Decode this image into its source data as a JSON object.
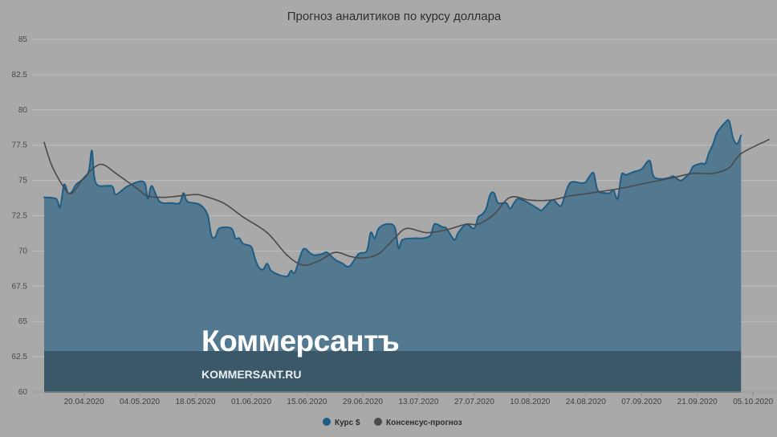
{
  "chart_data": {
    "type": "area",
    "title": "Прогноз аналитиков по курсу доллара",
    "xlabel": "",
    "ylabel": "",
    "ylim": [
      60,
      85
    ],
    "yticks": [
      "60",
      "62.5",
      "65",
      "67.5",
      "70",
      "72.5",
      "75",
      "77.5",
      "80",
      "82.5",
      "85"
    ],
    "xticks": [
      "20.04.2020",
      "04.05.2020",
      "18.05.2020",
      "01.06.2020",
      "15.06.2020",
      "29.06.2020",
      "13.07.2020",
      "27.07.2020",
      "10.08.2020",
      "24.08.2020",
      "07.09.2020",
      "21.09.2020",
      "05.10.2020"
    ],
    "x_start": "2020-04-10",
    "x_end": "2020-10-09",
    "grid": true,
    "legend_position": "bottom-center",
    "series": [
      {
        "name": "Курс $",
        "kind": "area",
        "color": "#1f5d86",
        "points": [
          [
            "2020-04-10",
            73.8
          ],
          [
            "2020-04-13",
            73.7
          ],
          [
            "2020-04-14",
            73.1
          ],
          [
            "2020-04-15",
            74.7
          ],
          [
            "2020-04-16",
            74.1
          ],
          [
            "2020-04-17",
            74.2
          ],
          [
            "2020-04-18",
            74.7
          ],
          [
            "2020-04-21",
            75.5
          ],
          [
            "2020-04-22",
            77.1
          ],
          [
            "2020-04-23",
            74.8
          ],
          [
            "2020-04-27",
            74.6
          ],
          [
            "2020-04-28",
            74.0
          ],
          [
            "2020-05-01",
            74.6
          ],
          [
            "2020-05-05",
            74.9
          ],
          [
            "2020-05-06",
            73.7
          ],
          [
            "2020-05-07",
            74.6
          ],
          [
            "2020-05-09",
            73.5
          ],
          [
            "2020-05-12",
            73.4
          ],
          [
            "2020-05-14",
            73.4
          ],
          [
            "2020-05-15",
            74.1
          ],
          [
            "2020-05-16",
            73.5
          ],
          [
            "2020-05-19",
            73.3
          ],
          [
            "2020-05-21",
            72.6
          ],
          [
            "2020-05-22",
            71.1
          ],
          [
            "2020-05-23",
            71.0
          ],
          [
            "2020-05-24",
            71.6
          ],
          [
            "2020-05-27",
            71.6
          ],
          [
            "2020-05-28",
            70.9
          ],
          [
            "2020-05-29",
            70.9
          ],
          [
            "2020-05-30",
            70.5
          ],
          [
            "2020-06-01",
            70.3
          ],
          [
            "2020-06-02",
            69.4
          ],
          [
            "2020-06-03",
            68.8
          ],
          [
            "2020-06-04",
            68.7
          ],
          [
            "2020-06-05",
            69.1
          ],
          [
            "2020-06-06",
            68.6
          ],
          [
            "2020-06-08",
            68.3
          ],
          [
            "2020-06-10",
            68.2
          ],
          [
            "2020-06-11",
            68.6
          ],
          [
            "2020-06-12",
            68.5
          ],
          [
            "2020-06-14",
            70.1
          ],
          [
            "2020-06-16",
            69.8
          ],
          [
            "2020-06-17",
            69.7
          ],
          [
            "2020-06-19",
            69.8
          ],
          [
            "2020-06-20",
            69.9
          ],
          [
            "2020-06-22",
            69.4
          ],
          [
            "2020-06-24",
            69.1
          ],
          [
            "2020-06-25",
            68.9
          ],
          [
            "2020-06-26",
            69.0
          ],
          [
            "2020-06-28",
            69.8
          ],
          [
            "2020-06-30",
            70.0
          ],
          [
            "2020-07-01",
            71.3
          ],
          [
            "2020-07-02",
            70.9
          ],
          [
            "2020-07-03",
            71.6
          ],
          [
            "2020-07-05",
            71.9
          ],
          [
            "2020-07-07",
            71.7
          ],
          [
            "2020-07-08",
            70.2
          ],
          [
            "2020-07-09",
            70.8
          ],
          [
            "2020-07-12",
            70.9
          ],
          [
            "2020-07-14",
            70.9
          ],
          [
            "2020-07-16",
            71.1
          ],
          [
            "2020-07-17",
            71.9
          ],
          [
            "2020-07-19",
            71.7
          ],
          [
            "2020-07-20",
            71.6
          ],
          [
            "2020-07-22",
            70.8
          ],
          [
            "2020-07-23",
            71.3
          ],
          [
            "2020-07-25",
            71.9
          ],
          [
            "2020-07-27",
            71.6
          ],
          [
            "2020-07-28",
            72.4
          ],
          [
            "2020-07-29",
            72.6
          ],
          [
            "2020-07-30",
            73.0
          ],
          [
            "2020-07-31",
            74.0
          ],
          [
            "2020-08-01",
            74.1
          ],
          [
            "2020-08-02",
            73.4
          ],
          [
            "2020-08-04",
            73.4
          ],
          [
            "2020-08-05",
            73.0
          ],
          [
            "2020-08-06",
            73.4
          ],
          [
            "2020-08-07",
            73.7
          ],
          [
            "2020-08-09",
            73.5
          ],
          [
            "2020-08-12",
            73.0
          ],
          [
            "2020-08-13",
            72.9
          ],
          [
            "2020-08-15",
            73.5
          ],
          [
            "2020-08-16",
            73.6
          ],
          [
            "2020-08-17",
            73.3
          ],
          [
            "2020-08-18",
            73.3
          ],
          [
            "2020-08-20",
            74.8
          ],
          [
            "2020-08-23",
            74.8
          ],
          [
            "2020-08-24",
            74.9
          ],
          [
            "2020-08-25",
            75.3
          ],
          [
            "2020-08-26",
            75.5
          ],
          [
            "2020-08-27",
            74.3
          ],
          [
            "2020-08-29",
            74.1
          ],
          [
            "2020-08-30",
            74.1
          ],
          [
            "2020-08-31",
            74.3
          ],
          [
            "2020-09-01",
            73.7
          ],
          [
            "2020-09-02",
            75.4
          ],
          [
            "2020-09-03",
            75.4
          ],
          [
            "2020-09-05",
            75.6
          ],
          [
            "2020-09-07",
            75.8
          ],
          [
            "2020-09-09",
            76.4
          ],
          [
            "2020-09-10",
            75.3
          ],
          [
            "2020-09-12",
            75.1
          ],
          [
            "2020-09-14",
            75.2
          ],
          [
            "2020-09-15",
            75.3
          ],
          [
            "2020-09-16",
            75.1
          ],
          [
            "2020-09-17",
            75.0
          ],
          [
            "2020-09-19",
            75.5
          ],
          [
            "2020-09-20",
            76.0
          ],
          [
            "2020-09-22",
            76.2
          ],
          [
            "2020-09-23",
            76.2
          ],
          [
            "2020-09-24",
            77.0
          ],
          [
            "2020-09-25",
            77.6
          ],
          [
            "2020-09-26",
            78.4
          ],
          [
            "2020-09-28",
            79.1
          ],
          [
            "2020-09-29",
            79.2
          ],
          [
            "2020-09-30",
            78.0
          ],
          [
            "2020-10-01",
            77.6
          ],
          [
            "2020-10-02",
            78.2
          ]
        ]
      },
      {
        "name": "Консенсус-прогноз",
        "kind": "line",
        "color": "#4a4a4a",
        "points": [
          [
            "2020-04-10",
            77.7
          ],
          [
            "2020-04-12",
            76.0
          ],
          [
            "2020-04-15",
            74.5
          ],
          [
            "2020-04-17",
            74.1
          ],
          [
            "2020-04-20",
            75.2
          ],
          [
            "2020-04-23",
            76.0
          ],
          [
            "2020-04-25",
            76.1
          ],
          [
            "2020-04-28",
            75.5
          ],
          [
            "2020-05-03",
            74.5
          ],
          [
            "2020-05-06",
            73.9
          ],
          [
            "2020-05-10",
            73.8
          ],
          [
            "2020-05-14",
            73.9
          ],
          [
            "2020-05-18",
            74.0
          ],
          [
            "2020-05-20",
            73.9
          ],
          [
            "2020-05-25",
            73.4
          ],
          [
            "2020-05-30",
            72.4
          ],
          [
            "2020-06-05",
            71.3
          ],
          [
            "2020-06-10",
            69.7
          ],
          [
            "2020-06-14",
            69.0
          ],
          [
            "2020-06-18",
            69.3
          ],
          [
            "2020-06-22",
            69.9
          ],
          [
            "2020-06-26",
            69.6
          ],
          [
            "2020-06-29",
            69.5
          ],
          [
            "2020-07-03",
            69.8
          ],
          [
            "2020-07-07",
            70.9
          ],
          [
            "2020-07-10",
            71.6
          ],
          [
            "2020-07-15",
            71.3
          ],
          [
            "2020-07-20",
            71.5
          ],
          [
            "2020-07-25",
            71.9
          ],
          [
            "2020-07-28",
            71.9
          ],
          [
            "2020-08-01",
            72.6
          ],
          [
            "2020-08-05",
            73.8
          ],
          [
            "2020-08-10",
            73.6
          ],
          [
            "2020-08-15",
            73.6
          ],
          [
            "2020-08-20",
            73.9
          ],
          [
            "2020-08-25",
            74.1
          ],
          [
            "2020-09-01",
            74.4
          ],
          [
            "2020-09-08",
            74.8
          ],
          [
            "2020-09-15",
            75.2
          ],
          [
            "2020-09-20",
            75.5
          ],
          [
            "2020-09-25",
            75.5
          ],
          [
            "2020-09-29",
            75.9
          ],
          [
            "2020-10-02",
            76.9
          ],
          [
            "2020-10-09",
            77.9
          ]
        ]
      }
    ]
  },
  "watermark": {
    "name": "Коммерсантъ",
    "url": "KOMMERSANT.RU"
  }
}
